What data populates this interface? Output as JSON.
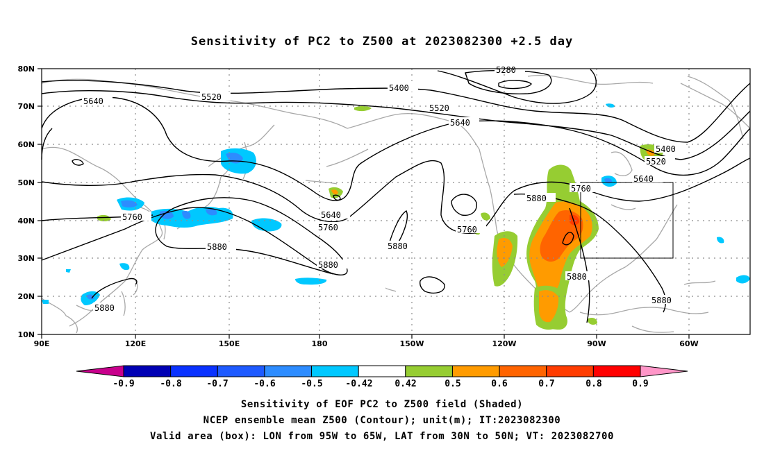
{
  "title": "Sensitivity of PC2 to Z500 at 2023082300 +2.5 day",
  "lat_labels": [
    "80N",
    "70N",
    "60N",
    "50N",
    "40N",
    "30N",
    "20N",
    "10N"
  ],
  "lon_labels": [
    "90E",
    "120E",
    "150E",
    "180",
    "150W",
    "120W",
    "90W",
    "60W"
  ],
  "contour_labels": [
    "5280",
    "5400",
    "5520",
    "5640",
    "5760",
    "5880"
  ],
  "colorbar": {
    "labels": [
      "-0.9",
      "-0.8",
      "-0.7",
      "-0.6",
      "-0.5",
      "-0.42",
      "0.42",
      "0.5",
      "0.6",
      "0.7",
      "0.8",
      "0.9"
    ],
    "colors": [
      "#c8008c",
      "#0000b4",
      "#0a32ff",
      "#1e5aff",
      "#2d8cff",
      "#00c8ff",
      "#ffffff",
      "#96cd32",
      "#ff9b00",
      "#ff6400",
      "#ff3c00",
      "#ff0000",
      "#ff96c8"
    ]
  },
  "captions": {
    "line1": "Sensitivity of EOF PC2 to Z500 field (Shaded)",
    "line2": "NCEP ensemble mean Z500 (Contour); unit(m); IT:2023082300",
    "line3": "Valid area (box): LON from 95W to 65W, LAT from 30N to 50N; VT: 2023082700"
  }
}
